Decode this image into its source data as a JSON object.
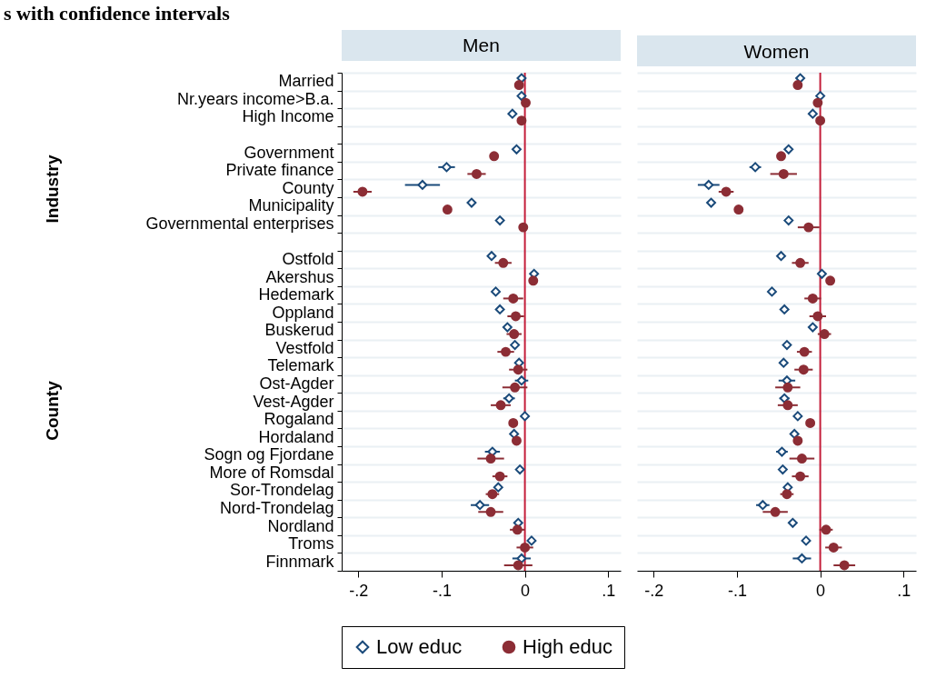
{
  "chart_data": [
    {
      "type": "scatter",
      "title": "Men",
      "orientation": "horizontal",
      "legend": "bottom",
      "grid": "y",
      "annotations": [
        "s with confidence intervals",
        "Industry",
        "County"
      ],
      "categories": [
        "Married",
        "Nr.years income>B.a.",
        "High Income",
        null,
        "Government",
        "Private finance",
        "County",
        "Municipality",
        "Governmental enterprises",
        null,
        "Ostfold",
        "Akershus",
        "Hedemark",
        "Oppland",
        "Buskerud",
        "Vestfold",
        "Telemark",
        "Ost-Agder",
        "Vest-Agder",
        "Rogaland",
        "Hordaland",
        "Sogn og Fjordane",
        "More of Romsdal",
        "Sor-Trondelag",
        "Nord-Trondelag",
        "Nordland",
        "Troms",
        "Finnmark"
      ],
      "xlim": [
        -0.22,
        0.115
      ],
      "xticks": [
        {
          "value": -0.2,
          "label": "-.2"
        },
        {
          "value": -0.1,
          "label": "-.1"
        },
        0,
        {
          "value": 0.1,
          "label": ".1"
        }
      ],
      "ref_lines": [
        {
          "axis": "x",
          "value": 0,
          "color": "#c41e3a"
        }
      ],
      "series": [
        {
          "name": "Low educ",
          "color": "#1a4a7a",
          "marker": "diamond",
          "values": [
            -0.004,
            -0.004,
            -0.015,
            null,
            -0.01,
            -0.094,
            -0.123,
            -0.064,
            -0.03,
            null,
            -0.04,
            0.011,
            -0.035,
            -0.03,
            -0.021,
            -0.012,
            -0.007,
            -0.004,
            -0.019,
            0.0,
            -0.013,
            -0.039,
            -0.006,
            -0.032,
            -0.054,
            -0.008,
            0.008,
            -0.004
          ],
          "errors": [
            null,
            null,
            null,
            null,
            null,
            0.01,
            0.021,
            null,
            null,
            null,
            null,
            null,
            null,
            null,
            null,
            null,
            null,
            0.008,
            0.007,
            null,
            null,
            0.009,
            null,
            null,
            0.011,
            null,
            null,
            0.011
          ]
        },
        {
          "name": "High educ",
          "color": "#8c2d35",
          "marker": "circle",
          "values": [
            -0.007,
            0.001,
            -0.004,
            null,
            -0.037,
            -0.058,
            -0.195,
            -0.093,
            -0.002,
            null,
            -0.026,
            0.01,
            -0.014,
            -0.011,
            -0.013,
            -0.023,
            -0.008,
            -0.012,
            -0.029,
            -0.014,
            -0.01,
            -0.041,
            -0.03,
            -0.039,
            -0.041,
            -0.009,
            0.0,
            -0.008
          ],
          "errors": [
            null,
            null,
            null,
            null,
            null,
            0.011,
            0.011,
            null,
            null,
            null,
            0.01,
            null,
            0.012,
            0.01,
            0.009,
            0.01,
            0.011,
            0.015,
            0.012,
            null,
            null,
            0.016,
            0.009,
            0.008,
            0.015,
            0.009,
            0.01,
            0.017
          ]
        }
      ]
    },
    {
      "type": "scatter",
      "title": "Women",
      "orientation": "horizontal",
      "legend": "bottom",
      "grid": "y",
      "tick_labels": "x",
      "categories": [
        "Married",
        "Nr.years income>B.a.",
        "High Income",
        null,
        "Government",
        "Private finance",
        "County",
        "Municipality",
        "Governmental enterprises",
        null,
        "Ostfold",
        "Akershus",
        "Hedemark",
        "Oppland",
        "Buskerud",
        "Vestfold",
        "Telemark",
        "Ost-Agder",
        "Vest-Agder",
        "Rogaland",
        "Hordaland",
        "Sogn og Fjordane",
        "More of Romsdal",
        "Sor-Trondelag",
        "Nord-Trondelag",
        "Nordland",
        "Troms",
        "Finnmark"
      ],
      "xlim": [
        -0.22,
        0.115
      ],
      "xticks": [
        {
          "value": -0.2,
          "label": "-.2"
        },
        {
          "value": -0.1,
          "label": "-.1"
        },
        0,
        {
          "value": 0.1,
          "label": ".1"
        }
      ],
      "ref_lines": [
        {
          "axis": "x",
          "value": 0,
          "color": "#c41e3a"
        }
      ],
      "series": [
        {
          "name": "Low educ",
          "color": "#1a4a7a",
          "marker": "diamond",
          "values": [
            -0.024,
            0.0,
            -0.009,
            null,
            -0.038,
            -0.078,
            -0.134,
            -0.131,
            -0.038,
            null,
            -0.047,
            0.002,
            -0.058,
            -0.043,
            -0.009,
            -0.04,
            -0.044,
            -0.04,
            -0.043,
            -0.027,
            -0.031,
            -0.046,
            -0.045,
            -0.039,
            -0.069,
            -0.033,
            -0.017,
            -0.022
          ],
          "errors": [
            null,
            null,
            null,
            null,
            null,
            0.007,
            0.013,
            null,
            null,
            null,
            null,
            null,
            null,
            null,
            null,
            null,
            null,
            0.01,
            0.006,
            null,
            null,
            0.007,
            null,
            null,
            0.008,
            null,
            null,
            0.011
          ]
        },
        {
          "name": "High educ",
          "color": "#8c2d35",
          "marker": "circle",
          "values": [
            -0.027,
            -0.003,
            0.0,
            null,
            -0.047,
            -0.044,
            -0.113,
            -0.098,
            -0.014,
            null,
            -0.024,
            0.012,
            -0.009,
            -0.003,
            0.005,
            -0.019,
            -0.02,
            -0.039,
            -0.039,
            -0.012,
            -0.027,
            -0.022,
            -0.024,
            -0.04,
            -0.054,
            0.007,
            0.016,
            0.029
          ],
          "errors": [
            null,
            null,
            null,
            null,
            null,
            0.016,
            0.009,
            null,
            0.013,
            null,
            0.01,
            null,
            0.01,
            0.01,
            0.008,
            0.009,
            0.011,
            0.015,
            0.012,
            null,
            0.005,
            0.015,
            0.01,
            0.008,
            0.015,
            0.008,
            0.01,
            0.013
          ]
        }
      ]
    }
  ]
}
